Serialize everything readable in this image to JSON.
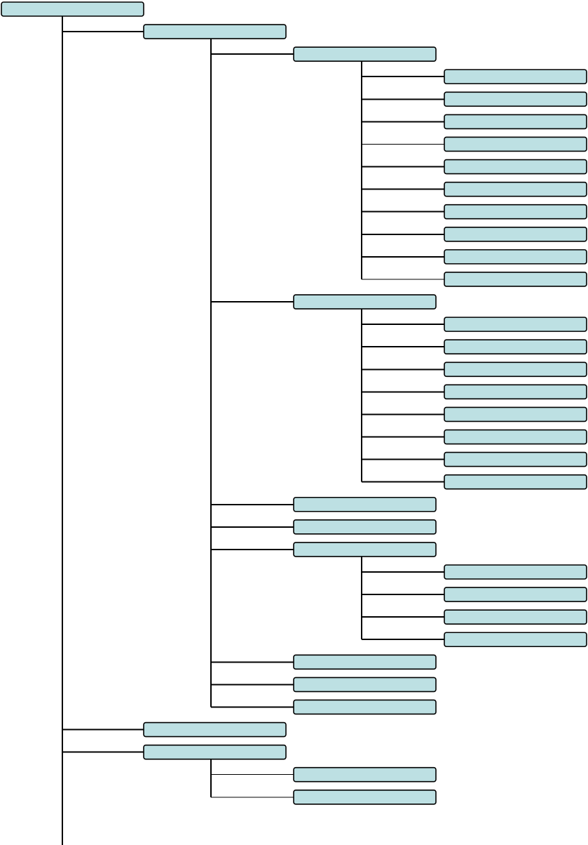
{
  "diagram": {
    "type": "tree",
    "colors": {
      "node_fill": "#bde0e3",
      "node_stroke": "#000000",
      "connector": "#000000",
      "background": "#ffffff"
    },
    "root": {
      "label": "",
      "children": [
        {
          "label": "",
          "children": [
            {
              "label": "",
              "children": [
                {
                  "label": ""
                },
                {
                  "label": ""
                },
                {
                  "label": ""
                },
                {
                  "label": ""
                },
                {
                  "label": ""
                },
                {
                  "label": ""
                },
                {
                  "label": ""
                },
                {
                  "label": ""
                },
                {
                  "label": ""
                },
                {
                  "label": ""
                }
              ]
            },
            {
              "label": "",
              "children": [
                {
                  "label": ""
                },
                {
                  "label": ""
                },
                {
                  "label": ""
                },
                {
                  "label": ""
                },
                {
                  "label": ""
                },
                {
                  "label": ""
                },
                {
                  "label": ""
                },
                {
                  "label": ""
                }
              ]
            },
            {
              "label": ""
            },
            {
              "label": ""
            },
            {
              "label": "",
              "children": [
                {
                  "label": ""
                },
                {
                  "label": ""
                },
                {
                  "label": ""
                },
                {
                  "label": ""
                }
              ]
            },
            {
              "label": ""
            },
            {
              "label": ""
            },
            {
              "label": ""
            }
          ]
        },
        {
          "label": ""
        },
        {
          "label": "",
          "children": [
            {
              "label": ""
            },
            {
              "label": ""
            }
          ]
        }
      ]
    }
  }
}
